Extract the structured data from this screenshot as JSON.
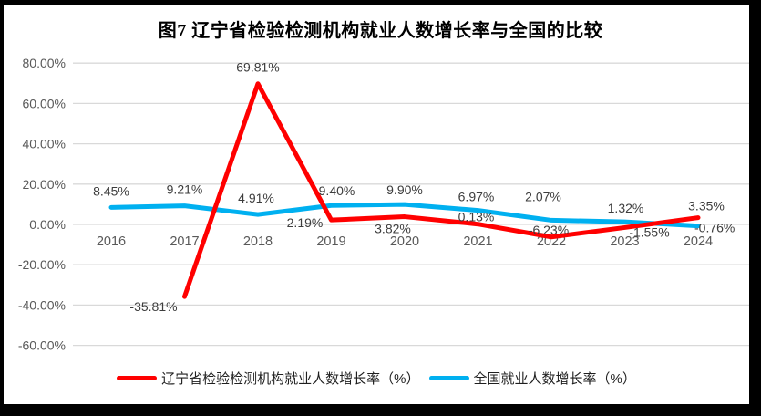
{
  "chart_data": {
    "type": "line",
    "title": "图7 辽宁省检验检测机构就业人数增长率与全国的比较",
    "categories": [
      "2016",
      "2017",
      "2018",
      "2019",
      "2020",
      "2021",
      "2022",
      "2023",
      "2024"
    ],
    "series": [
      {
        "name": "辽宁省检验检测机构就业人数增长率（%）",
        "color": "#FF0000",
        "values": [
          null,
          -35.81,
          69.81,
          2.19,
          3.82,
          0.13,
          -6.23,
          -1.55,
          3.35
        ],
        "point_labels": [
          "",
          "-35.81%",
          "69.81%",
          "2.19%",
          "3.82%",
          "0.13%",
          "-6.23%",
          "-1.55%",
          "3.35%"
        ]
      },
      {
        "name": "全国就业人数增长率（%）",
        "color": "#00B0F0",
        "values": [
          8.45,
          9.21,
          4.91,
          9.4,
          9.9,
          6.97,
          2.07,
          1.32,
          -0.76
        ],
        "point_labels": [
          "8.45%",
          "9.21%",
          "4.91%",
          "9.40%",
          "9.90%",
          "6.97%",
          "2.07%",
          "1.32%",
          "-0.76%"
        ]
      }
    ],
    "y_axis": {
      "min": -60,
      "max": 80,
      "tick_step": 20,
      "ticks": [
        80,
        60,
        40,
        20,
        0,
        -20,
        -40,
        -60
      ],
      "tick_labels": [
        "80.00%",
        "60.00%",
        "40.00%",
        "20.00%",
        "0.00%",
        "-20.00%",
        "-40.00%",
        "-60.00%"
      ]
    },
    "grid": true,
    "legend_position": "bottom",
    "colors": {
      "gridline": "#D9D9D9",
      "axis_text": "#595959",
      "data_label_text": "#3d3d3d",
      "frame": "#000000",
      "plot_background": "#ffffff"
    }
  }
}
